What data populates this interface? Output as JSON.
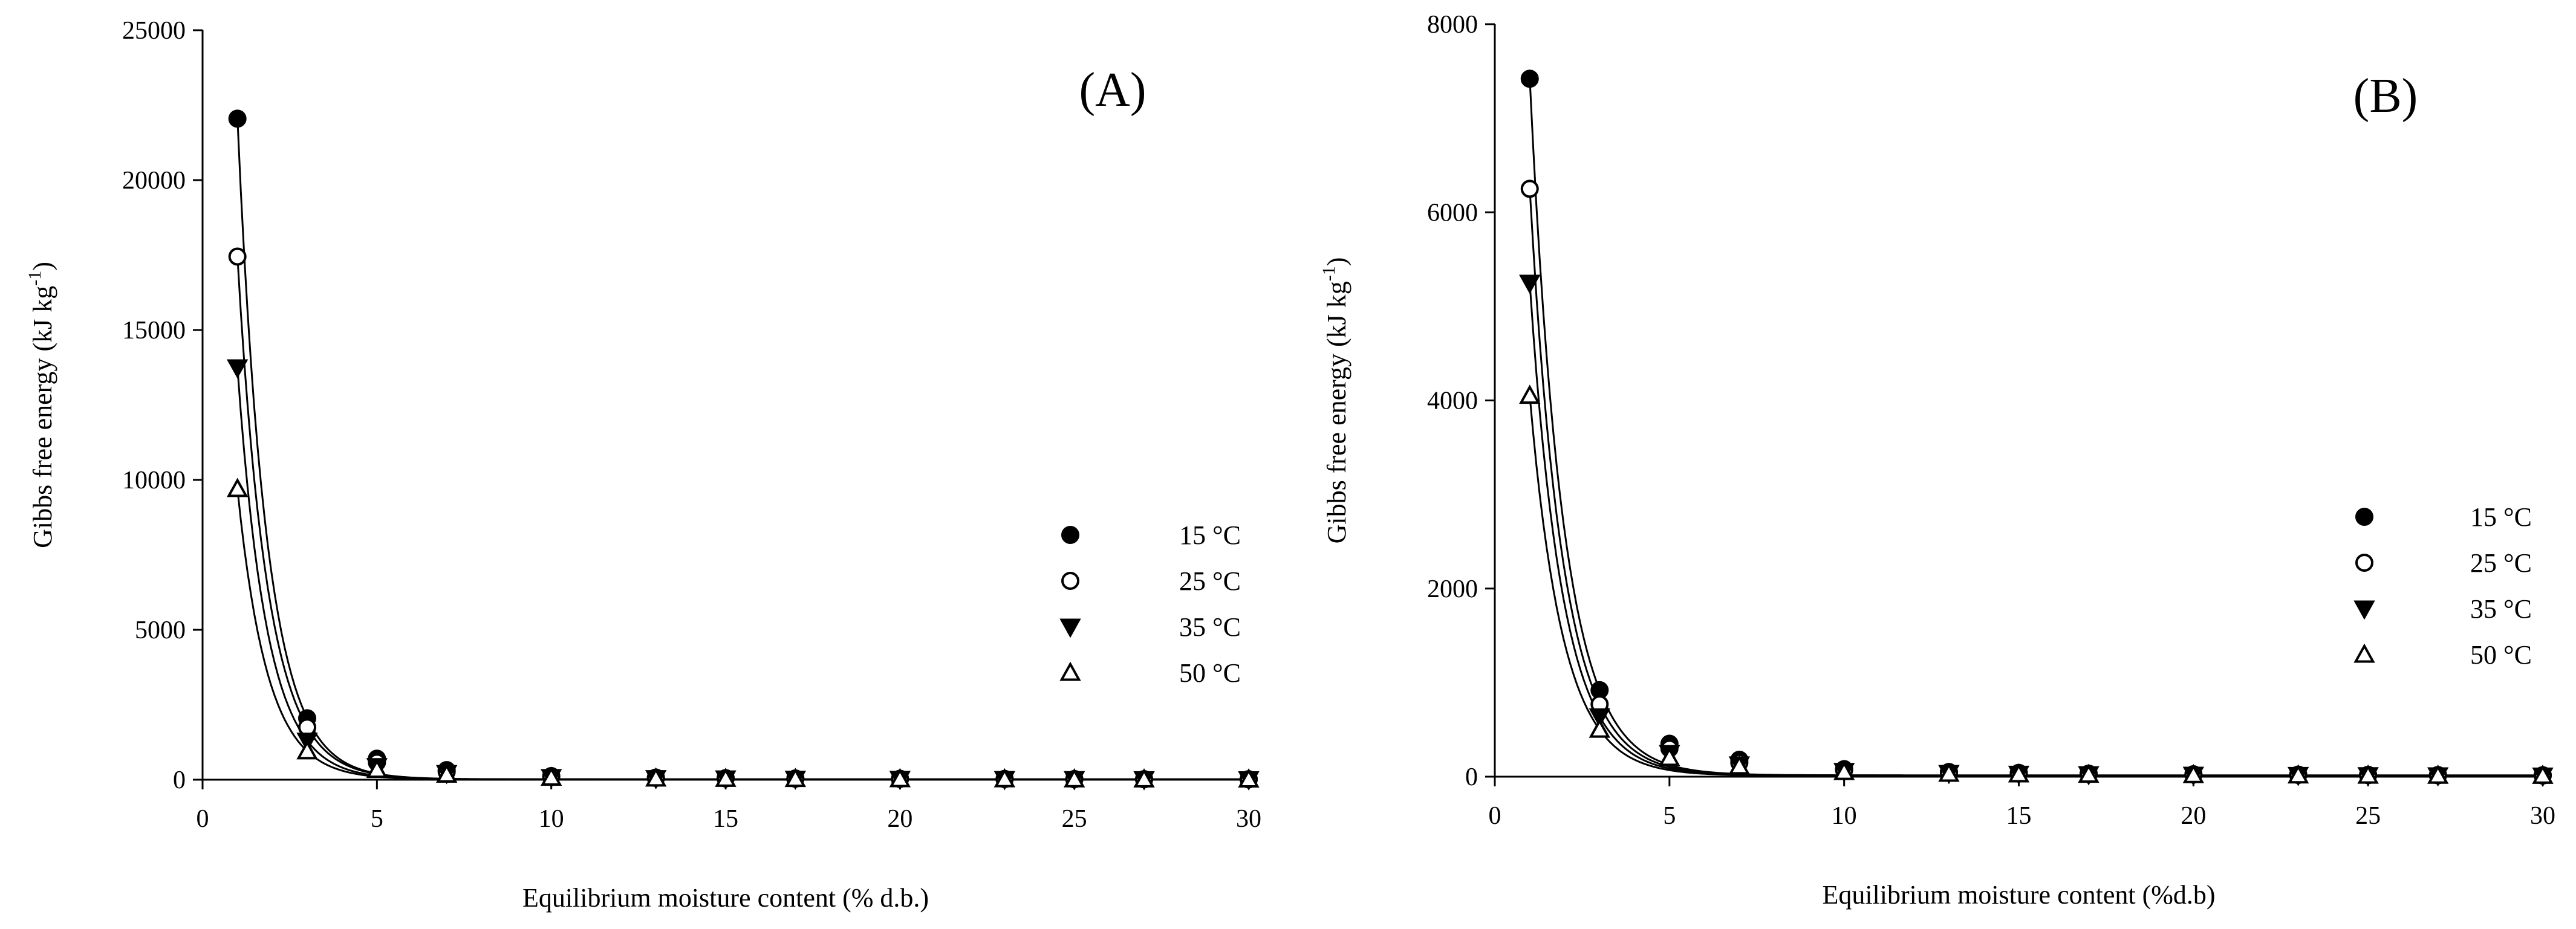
{
  "chart_data": [
    {
      "type": "scatter",
      "panel_label": "(A)",
      "xlabel": "Equilibrium moisture content (% d.b.)",
      "ylabel_main": "Gibbs free energy (kJ kg",
      "ylabel_sup": "-1",
      "ylabel_tail": ")",
      "xlim": [
        0,
        30
      ],
      "ylim": [
        0,
        25000
      ],
      "xticks": [
        0,
        5,
        10,
        15,
        20,
        25,
        30
      ],
      "yticks": [
        0,
        5000,
        10000,
        15000,
        20000,
        25000
      ],
      "grid": false,
      "legend_position": "right",
      "fit_curves": true,
      "x": [
        1,
        3,
        5,
        7,
        10,
        13,
        15,
        17,
        20,
        23,
        25,
        27,
        30
      ],
      "series": [
        {
          "name": "15 °C",
          "marker": "filled-circle",
          "values": [
            22050,
            2050,
            700,
            320,
            120,
            70,
            50,
            40,
            30,
            25,
            20,
            18,
            15
          ]
        },
        {
          "name": "25 °C",
          "marker": "open-circle",
          "values": [
            17450,
            1750,
            580,
            270,
            100,
            60,
            45,
            35,
            28,
            22,
            18,
            16,
            13
          ]
        },
        {
          "name": "35 °C",
          "marker": "filled-triangle-down",
          "values": [
            13750,
            1300,
            450,
            220,
            85,
            50,
            38,
            30,
            24,
            19,
            16,
            14,
            12
          ]
        },
        {
          "name": "50 °C",
          "marker": "open-triangle-up",
          "values": [
            9700,
            950,
            330,
            170,
            70,
            42,
            32,
            26,
            20,
            16,
            14,
            12,
            10
          ]
        }
      ]
    },
    {
      "type": "scatter",
      "panel_label": "(B)",
      "xlabel": "Equilibrium moisture content (%d.b)",
      "ylabel_main": "Gibbs free energy (kJ kg",
      "ylabel_sup": "-1",
      "ylabel_tail": ")",
      "xlim": [
        0,
        30
      ],
      "ylim": [
        0,
        8000
      ],
      "xticks": [
        0,
        5,
        10,
        15,
        20,
        25,
        30
      ],
      "yticks": [
        0,
        2000,
        4000,
        6000,
        8000
      ],
      "grid": false,
      "legend_position": "right",
      "fit_curves": true,
      "x": [
        1,
        3,
        5,
        7,
        10,
        13,
        15,
        17,
        20,
        23,
        25,
        27,
        30
      ],
      "series": [
        {
          "name": "15 °C",
          "marker": "filled-circle",
          "values": [
            7420,
            920,
            350,
            180,
            80,
            50,
            40,
            32,
            26,
            22,
            19,
            17,
            15
          ]
        },
        {
          "name": "25 °C",
          "marker": "open-circle",
          "values": [
            6250,
            770,
            300,
            150,
            70,
            45,
            35,
            28,
            23,
            19,
            17,
            15,
            13
          ]
        },
        {
          "name": "35 °C",
          "marker": "filled-triangle-down",
          "values": [
            5250,
            640,
            250,
            130,
            60,
            38,
            30,
            25,
            20,
            17,
            15,
            13,
            11
          ]
        },
        {
          "name": "50 °C",
          "marker": "open-triangle-up",
          "values": [
            4050,
            500,
            200,
            110,
            50,
            32,
            25,
            21,
            17,
            14,
            12,
            11,
            10
          ]
        }
      ]
    }
  ]
}
